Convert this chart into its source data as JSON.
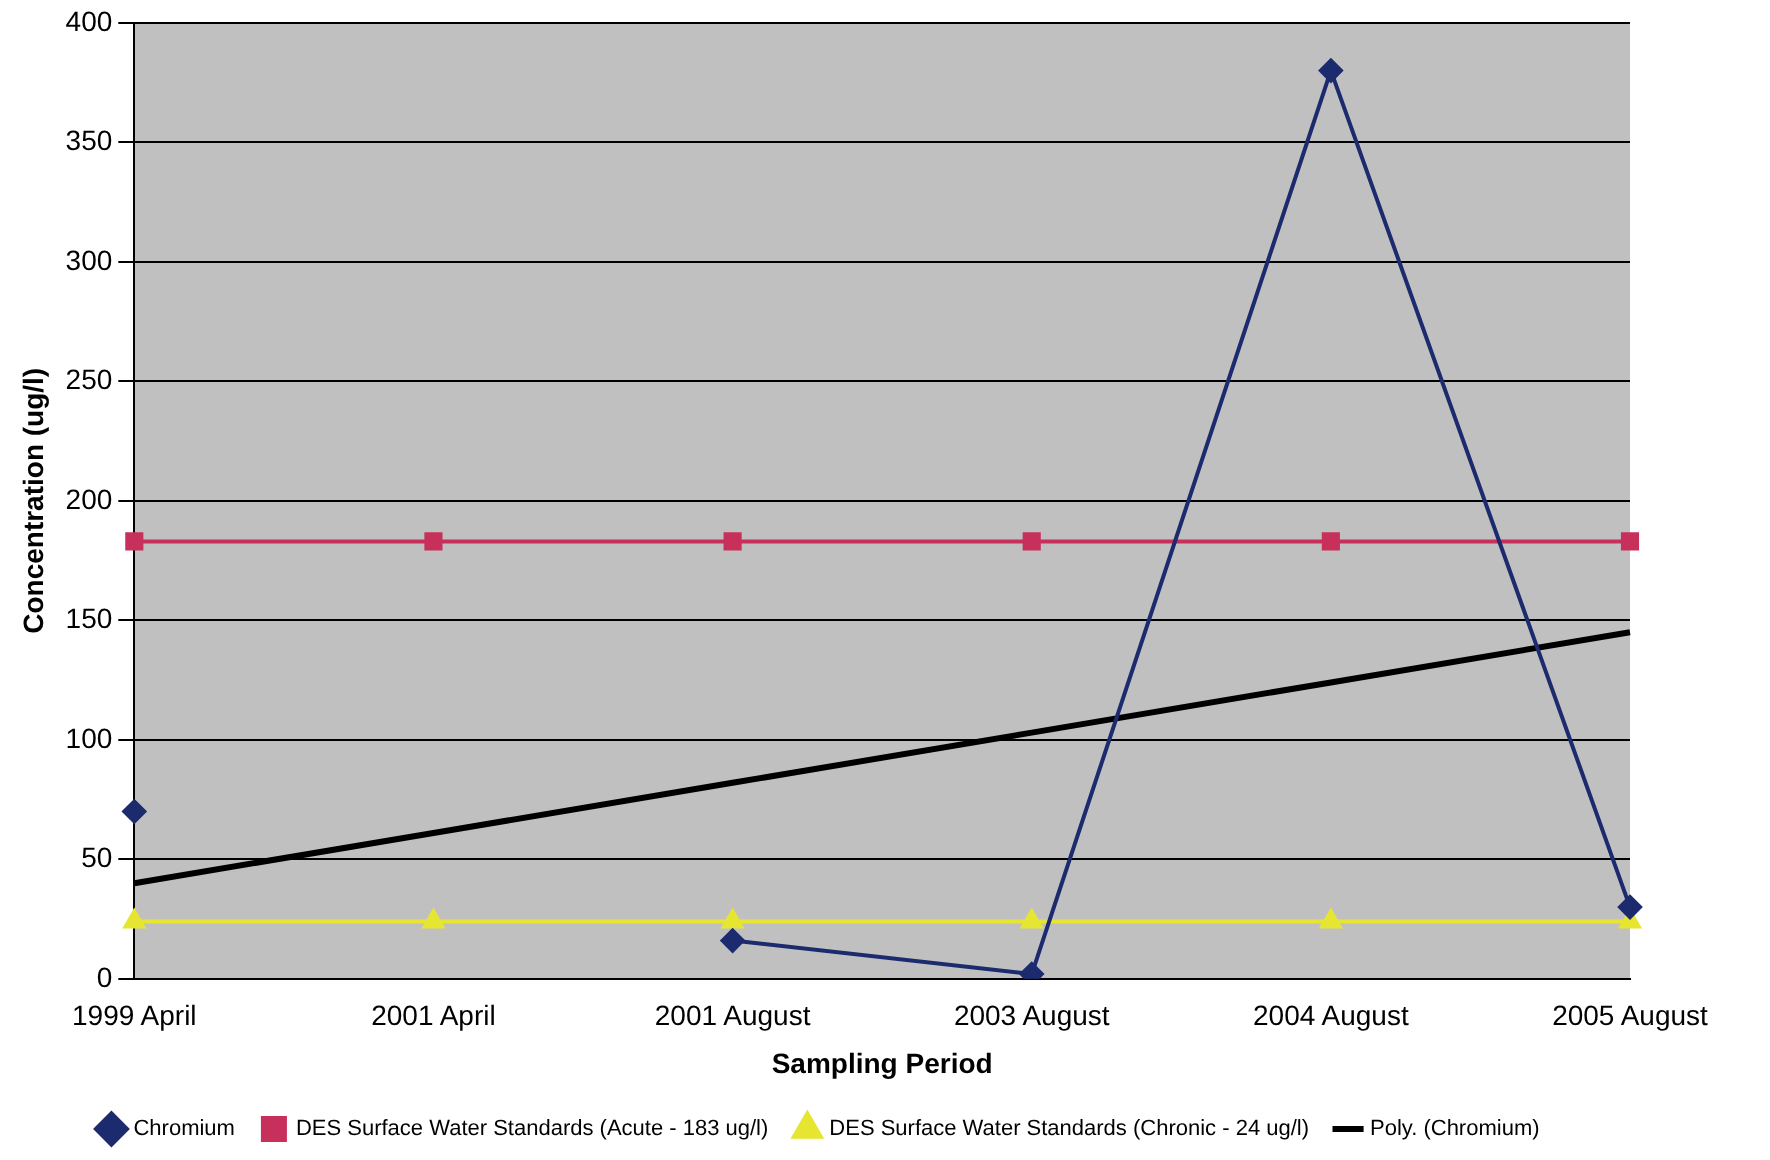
{
  "chart_data": {
    "type": "line",
    "xlabel": "Sampling Period",
    "ylabel": "Concentration (ug/l)",
    "categories": [
      "1999 April",
      "2001 April",
      "2001 August",
      "2003 August",
      "2004 August",
      "2005 August"
    ],
    "ylim": [
      0,
      400
    ],
    "yticks": [
      0,
      50,
      100,
      150,
      200,
      250,
      300,
      350,
      400
    ],
    "grid": "y",
    "legend": "bottom",
    "series": [
      {
        "name": "Chromium",
        "color": "#1c2a6e",
        "marker": "diamond",
        "values": [
          70,
          null,
          16,
          2,
          380,
          30
        ]
      },
      {
        "name": "DES Surface Water Standards (Acute - 183 ug/l)",
        "color": "#c8305c",
        "marker": "square",
        "values": [
          183,
          183,
          183,
          183,
          183,
          183
        ]
      },
      {
        "name": "DES Surface Water Standards (Chronic - 24 ug/l)",
        "color": "#e6e632",
        "marker": "triangle",
        "values": [
          24,
          24,
          24,
          24,
          24,
          24
        ]
      },
      {
        "name": "Poly. (Chromium)",
        "color": "#000000",
        "marker": "none",
        "values": [
          40,
          61,
          82,
          103,
          124,
          145
        ]
      }
    ]
  }
}
